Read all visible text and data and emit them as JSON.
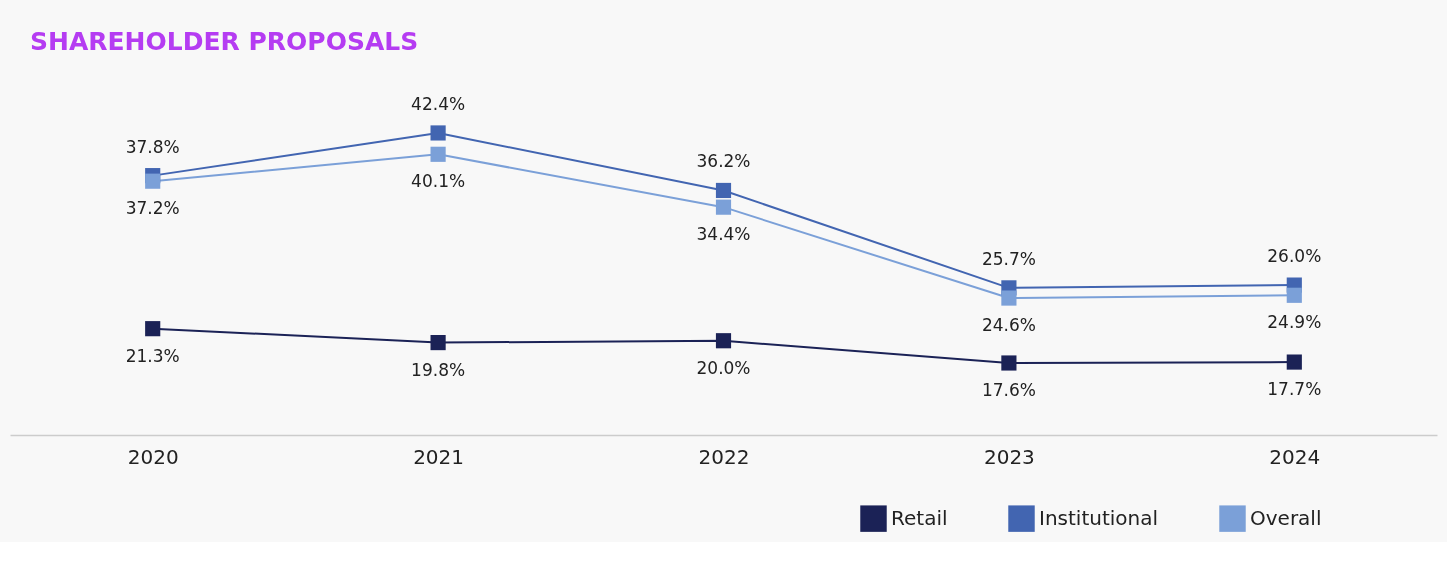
{
  "chart_data": {
    "type": "line",
    "title": "SHAREHOLDER PROPOSALS",
    "categories": [
      "2020",
      "2021",
      "2022",
      "2023",
      "2024"
    ],
    "series": [
      {
        "name": "Retail",
        "color": "#1b2256",
        "values": [
          21.3,
          19.8,
          20.0,
          17.6,
          17.7
        ],
        "value_labels": [
          "21.3%",
          "19.8%",
          "20.0%",
          "17.6%",
          "17.7%"
        ]
      },
      {
        "name": "Institutional",
        "color": "#4265b1",
        "values": [
          37.8,
          42.4,
          36.2,
          25.7,
          26.0
        ],
        "value_labels": [
          "37.8%",
          "42.4%",
          "36.2%",
          "25.7%",
          "26.0%"
        ]
      },
      {
        "name": "Overall",
        "color": "#7ba0d8",
        "values": [
          37.2,
          40.1,
          34.4,
          24.6,
          24.9
        ],
        "value_labels": [
          "37.2%",
          "40.1%",
          "34.4%",
          "24.6%",
          "24.9%"
        ]
      }
    ],
    "marker": "square",
    "line_style": "solid",
    "legend": "bottom right",
    "grid": false
  }
}
